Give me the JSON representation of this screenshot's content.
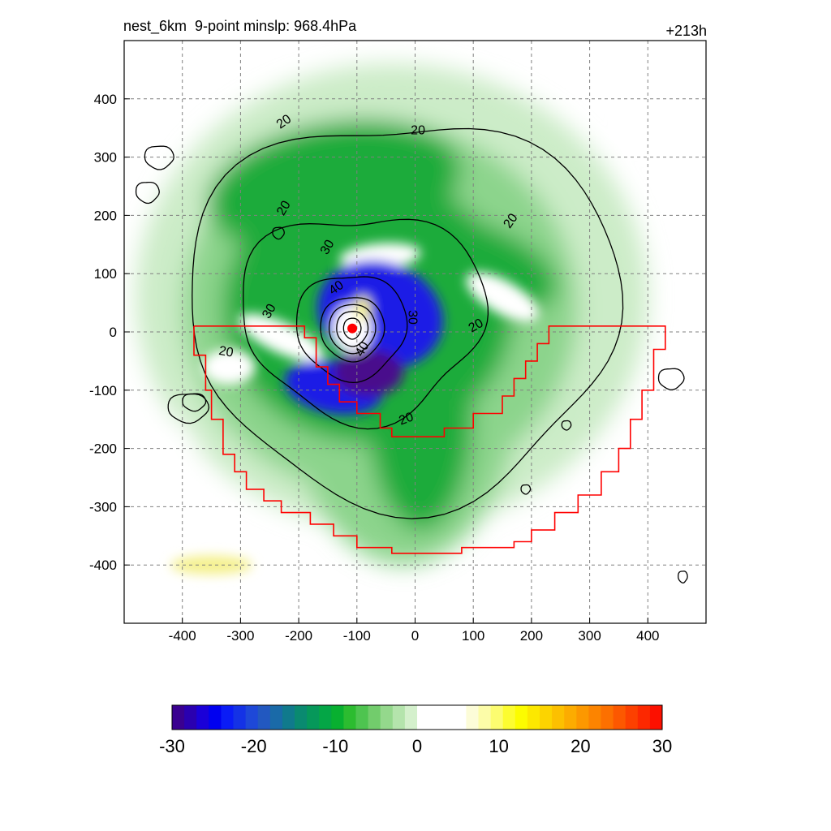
{
  "chart_data": {
    "type": "heatmap",
    "title_left": "nest_6km  9-point minslp: 968.4hPa",
    "title_right": "+213h",
    "xlim": [
      -500,
      500
    ],
    "ylim": [
      -500,
      500
    ],
    "x_ticks": [
      -400,
      -300,
      -200,
      -100,
      0,
      100,
      200,
      300,
      400
    ],
    "y_ticks": [
      400,
      300,
      200,
      100,
      0,
      -100,
      -200,
      -300,
      -400
    ],
    "grid": true,
    "grid_style": "dashed",
    "colorbar": {
      "min": -30,
      "max": 30,
      "ticks": [
        -30,
        -20,
        -10,
        0,
        10,
        20,
        30
      ],
      "colors": [
        "#3a0090",
        "#2a00b0",
        "#1a00d8",
        "#0000f0",
        "#0a1cf6",
        "#1432e6",
        "#1e48d8",
        "#2258c0",
        "#1a6aa8",
        "#107a8c",
        "#0a8a70",
        "#06985a",
        "#04a646",
        "#08b030",
        "#2cbc30",
        "#4ec450",
        "#72cc6c",
        "#94d88c",
        "#b4e4ac",
        "#d4f0cc",
        "#ffffff",
        "#ffffff",
        "#ffffff",
        "#ffffff",
        "#fcfcd8",
        "#fcfca8",
        "#fcfc70",
        "#fcfc30",
        "#fcfc00",
        "#fce800",
        "#fcd400",
        "#fcc000",
        "#fcac00",
        "#fc9800",
        "#fc8400",
        "#fc7000",
        "#fc5800",
        "#fc4000",
        "#fc2800",
        "#fc1000"
      ]
    },
    "shading_colors": {
      "strong_negative": "#4a0a8c",
      "negative_blue": "#1e1ee6",
      "mid_green": "#1eab3a",
      "light_green": "#8cd48c",
      "pale_green": "#ccecc8",
      "positive_yellow": "#f4f08c"
    },
    "contour_labels": [
      {
        "text": "20",
        "x": -225,
        "y": 212,
        "angle": -60
      },
      {
        "text": "20",
        "x": -225,
        "y": 360,
        "angle": -35
      },
      {
        "text": "20",
        "x": 5,
        "y": 345,
        "angle": 0
      },
      {
        "text": "20",
        "x": 165,
        "y": 190,
        "angle": -55
      },
      {
        "text": "20",
        "x": 105,
        "y": 10,
        "angle": -30
      },
      {
        "text": "20",
        "x": -15,
        "y": -150,
        "angle": -20
      },
      {
        "text": "20",
        "x": -325,
        "y": -35,
        "angle": 10
      },
      {
        "text": "30",
        "x": -250,
        "y": 35,
        "angle": -60
      },
      {
        "text": "30",
        "x": -150,
        "y": 145,
        "angle": -60
      },
      {
        "text": "30",
        "x": -5,
        "y": 25,
        "angle": 90
      },
      {
        "text": "40",
        "x": -135,
        "y": 75,
        "angle": -35
      },
      {
        "text": "40",
        "x": -90,
        "y": -30,
        "angle": -60
      }
    ],
    "domain_boundary_color": "#ff0000",
    "storm_center": {
      "x": -108,
      "y": 6,
      "color": "#ff0000"
    }
  }
}
